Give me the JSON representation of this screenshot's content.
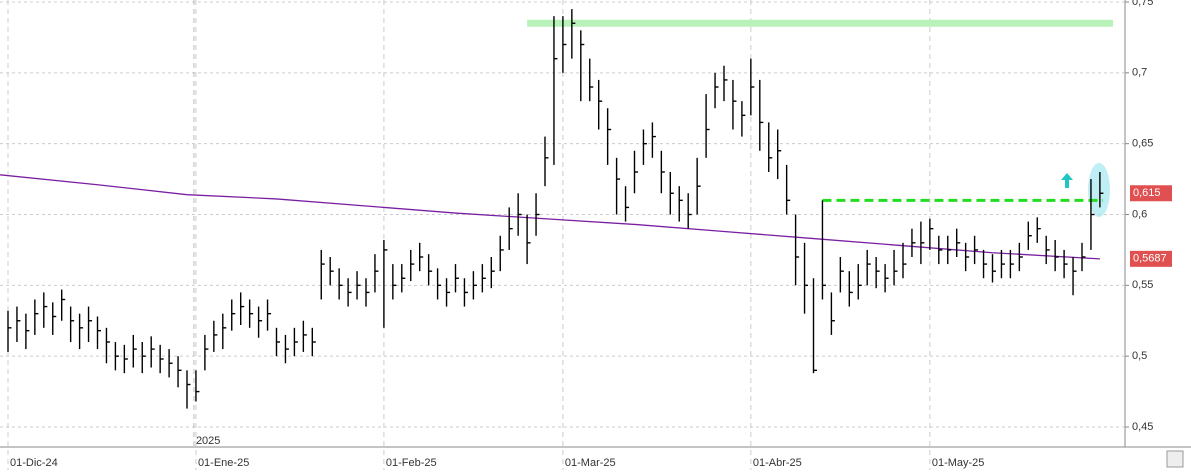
{
  "chart_data": {
    "type": "hlc",
    "categories": [
      "01-Dic-24",
      null,
      null,
      null,
      null,
      null,
      null,
      null,
      null,
      null,
      null,
      null,
      null,
      null,
      null,
      null,
      null,
      null,
      null,
      null,
      null,
      "01-Ene-25",
      null,
      null,
      null,
      null,
      null,
      null,
      null,
      null,
      null,
      null,
      null,
      null,
      null,
      null,
      null,
      null,
      null,
      null,
      null,
      null,
      "01-Feb-25",
      null,
      null,
      null,
      null,
      null,
      null,
      null,
      null,
      null,
      null,
      null,
      null,
      null,
      null,
      null,
      null,
      null,
      null,
      null,
      "01-Mar-25",
      null,
      null,
      null,
      null,
      null,
      null,
      null,
      null,
      null,
      null,
      null,
      null,
      null,
      null,
      null,
      null,
      null,
      null,
      null,
      null,
      "01-Abr-25",
      null,
      null,
      null,
      null,
      null,
      null,
      null,
      null,
      null,
      null,
      null,
      null,
      null,
      null,
      null,
      null,
      null,
      null,
      null,
      "01-May-25",
      null,
      null,
      null,
      null,
      null,
      null,
      null,
      null,
      null,
      null,
      null,
      null,
      null,
      null,
      null,
      null,
      null,
      null,
      null
    ],
    "year_label": "2025",
    "color": "#000000",
    "high": [
      0.532,
      0.535,
      0.53,
      0.54,
      0.545,
      0.538,
      0.547,
      0.535,
      0.53,
      0.535,
      0.528,
      0.52,
      0.51,
      0.508,
      0.515,
      0.51,
      0.514,
      0.508,
      0.505,
      0.5,
      0.49,
      0.49,
      0.515,
      0.525,
      0.53,
      0.54,
      0.545,
      0.54,
      0.535,
      0.54,
      0.52,
      0.515,
      0.52,
      0.525,
      0.52,
      0.575,
      0.57,
      0.562,
      0.555,
      0.56,
      0.555,
      0.572,
      0.582,
      0.565,
      0.565,
      0.575,
      0.58,
      0.572,
      0.562,
      0.555,
      0.565,
      0.555,
      0.56,
      0.565,
      0.57,
      0.585,
      0.605,
      0.615,
      0.6,
      0.615,
      0.655,
      0.74,
      0.74,
      0.745,
      0.73,
      0.71,
      0.695,
      0.675,
      0.64,
      0.62,
      0.645,
      0.66,
      0.665,
      0.645,
      0.63,
      0.62,
      0.615,
      0.64,
      0.685,
      0.7,
      0.705,
      0.695,
      0.68,
      0.71,
      0.695,
      0.665,
      0.66,
      0.635,
      0.6,
      0.58,
      0.555,
      0.61,
      0.545,
      0.57,
      0.56,
      0.565,
      0.575,
      0.57,
      0.565,
      0.575,
      0.58,
      0.59,
      0.595,
      0.597,
      0.585,
      0.585,
      0.59,
      0.58,
      0.585,
      0.575,
      0.572,
      0.575,
      0.575,
      0.58,
      0.595,
      0.598,
      0.585,
      0.582,
      0.575,
      0.57,
      0.58,
      0.625,
      0.63
    ],
    "low": [
      0.503,
      0.51,
      0.505,
      0.515,
      0.52,
      0.515,
      0.525,
      0.51,
      0.505,
      0.51,
      0.505,
      0.495,
      0.49,
      0.488,
      0.492,
      0.488,
      0.492,
      0.488,
      0.485,
      0.478,
      0.463,
      0.468,
      0.49,
      0.503,
      0.505,
      0.518,
      0.522,
      0.52,
      0.513,
      0.518,
      0.5,
      0.495,
      0.5,
      0.503,
      0.5,
      0.54,
      0.55,
      0.54,
      0.535,
      0.54,
      0.535,
      0.545,
      0.52,
      0.54,
      0.545,
      0.553,
      0.56,
      0.55,
      0.54,
      0.535,
      0.545,
      0.535,
      0.54,
      0.545,
      0.548,
      0.56,
      0.575,
      0.585,
      0.565,
      0.585,
      0.62,
      0.635,
      0.7,
      0.71,
      0.68,
      0.68,
      0.66,
      0.635,
      0.6,
      0.595,
      0.615,
      0.635,
      0.64,
      0.615,
      0.6,
      0.595,
      0.59,
      0.6,
      0.64,
      0.675,
      0.68,
      0.66,
      0.655,
      0.67,
      0.645,
      0.63,
      0.625,
      0.6,
      0.55,
      0.53,
      0.488,
      0.54,
      0.515,
      0.545,
      0.535,
      0.54,
      0.55,
      0.548,
      0.545,
      0.55,
      0.555,
      0.57,
      0.565,
      0.575,
      0.565,
      0.565,
      0.57,
      0.56,
      0.565,
      0.555,
      0.552,
      0.555,
      0.555,
      0.56,
      0.575,
      0.58,
      0.565,
      0.56,
      0.555,
      0.543,
      0.56,
      0.575,
      0.605
    ],
    "close": [
      0.52,
      0.525,
      0.518,
      0.53,
      0.535,
      0.528,
      0.54,
      0.525,
      0.52,
      0.525,
      0.518,
      0.51,
      0.5,
      0.498,
      0.505,
      0.5,
      0.505,
      0.498,
      0.495,
      0.49,
      0.48,
      0.475,
      0.505,
      0.515,
      0.52,
      0.53,
      0.535,
      0.53,
      0.525,
      0.53,
      0.51,
      0.505,
      0.51,
      0.515,
      0.51,
      0.565,
      0.56,
      0.55,
      0.545,
      0.55,
      0.545,
      0.56,
      0.575,
      0.55,
      0.555,
      0.565,
      0.57,
      0.56,
      0.55,
      0.545,
      0.555,
      0.545,
      0.55,
      0.555,
      0.56,
      0.575,
      0.59,
      0.6,
      0.58,
      0.6,
      0.64,
      0.71,
      0.72,
      0.735,
      0.72,
      0.69,
      0.68,
      0.66,
      0.625,
      0.605,
      0.63,
      0.65,
      0.655,
      0.63,
      0.615,
      0.61,
      0.6,
      0.62,
      0.66,
      0.69,
      0.695,
      0.68,
      0.67,
      0.69,
      0.665,
      0.64,
      0.645,
      0.61,
      0.57,
      0.55,
      0.49,
      0.55,
      0.525,
      0.56,
      0.545,
      0.55,
      0.565,
      0.56,
      0.555,
      0.56,
      0.565,
      0.58,
      0.58,
      0.59,
      0.575,
      0.575,
      0.58,
      0.57,
      0.575,
      0.565,
      0.56,
      0.565,
      0.565,
      0.57,
      0.585,
      0.59,
      0.575,
      0.57,
      0.565,
      0.56,
      0.57,
      0.6,
      0.615
    ],
    "moving_average": {
      "color": "#7a1fa2",
      "x": [
        0,
        10,
        20,
        30,
        40,
        50,
        60,
        70,
        80,
        90,
        100,
        110,
        122
      ],
      "values": [
        0.628,
        0.621,
        0.614,
        0.611,
        0.606,
        0.601,
        0.597,
        0.593,
        0.588,
        0.583,
        0.578,
        0.573,
        0.5687
      ]
    },
    "levels": [
      {
        "value": 0.735,
        "color": "#b9f2b9"
      },
      {
        "value": 0.61,
        "color": "#22dd22"
      }
    ],
    "price_tags": [
      {
        "value": 0.615,
        "label": "0,615"
      },
      {
        "value": 0.5687,
        "label": "0,5687"
      }
    ],
    "ylim": [
      0.45,
      0.75
    ],
    "yticks": [
      {
        "value": 0.45,
        "label": "0,45"
      },
      {
        "value": 0.5,
        "label": "0,5"
      },
      {
        "value": 0.55,
        "label": "0,55"
      },
      {
        "value": 0.6,
        "label": "0,6"
      },
      {
        "value": 0.65,
        "label": "0,65"
      },
      {
        "value": 0.7,
        "label": "0,7"
      },
      {
        "value": 0.75,
        "label": "0,75"
      }
    ],
    "grid": true
  }
}
